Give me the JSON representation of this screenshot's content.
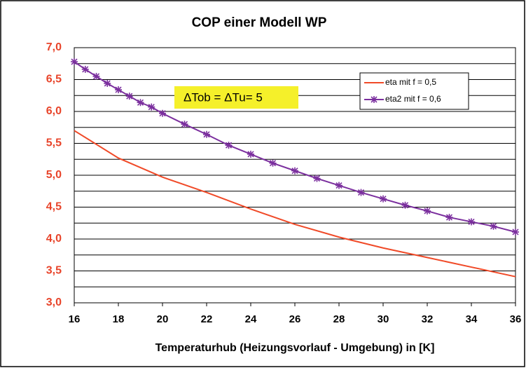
{
  "chart_data": {
    "type": "line",
    "title": "COP einer  Modell WP",
    "x_label": "Temperaturhub (Heizungsvorlauf - Umgebung) in  [K]",
    "annotation": "ΔTob = ΔTu= 5",
    "xlim": [
      16,
      36
    ],
    "xticks": [
      16,
      18,
      20,
      22,
      24,
      26,
      28,
      30,
      32,
      34,
      36
    ],
    "ylim": [
      3,
      7
    ],
    "yticks": [
      {
        "value": 3,
        "label": "3,0"
      },
      {
        "value": 3.5,
        "label": "3,5"
      },
      {
        "value": 4,
        "label": "4,0"
      },
      {
        "value": 4.5,
        "label": "4,5"
      },
      {
        "value": 5,
        "label": "5,0"
      },
      {
        "value": 5.5,
        "label": "5,5"
      },
      {
        "value": 6,
        "label": "6,0"
      },
      {
        "value": 6.5,
        "label": "6,5"
      },
      {
        "value": 7,
        "label": "7,0"
      }
    ],
    "minor_yticks": [
      3.25,
      3.75,
      4.25,
      4.75,
      5.25,
      5.75,
      6.25,
      6.75
    ],
    "grid": true,
    "legend": "upper right",
    "series": [
      {
        "name": "eta  mit f = 0,5",
        "color": "#f04a28",
        "markers": false,
        "x": [
          16,
          18,
          20,
          22,
          24,
          26,
          28,
          30,
          32,
          34,
          36
        ],
        "values": [
          5.7,
          5.27,
          4.97,
          4.73,
          4.47,
          4.23,
          4.03,
          3.86,
          3.71,
          3.56,
          3.41
        ]
      },
      {
        "name": "eta2 mit f = 0,6",
        "color": "#7b2f9e",
        "markers": true,
        "x": [
          16,
          16.5,
          17,
          17.5,
          18,
          18.5,
          19,
          19.5,
          20,
          21,
          22,
          23,
          24,
          25,
          26,
          27,
          28,
          29,
          30,
          31,
          32,
          33,
          34,
          35,
          36
        ],
        "values": [
          6.78,
          6.66,
          6.55,
          6.44,
          6.34,
          6.24,
          6.14,
          6.07,
          5.97,
          5.8,
          5.64,
          5.47,
          5.33,
          5.19,
          5.07,
          4.95,
          4.84,
          4.73,
          4.63,
          4.53,
          4.44,
          4.34,
          4.27,
          4.2,
          4.11
        ]
      }
    ]
  }
}
